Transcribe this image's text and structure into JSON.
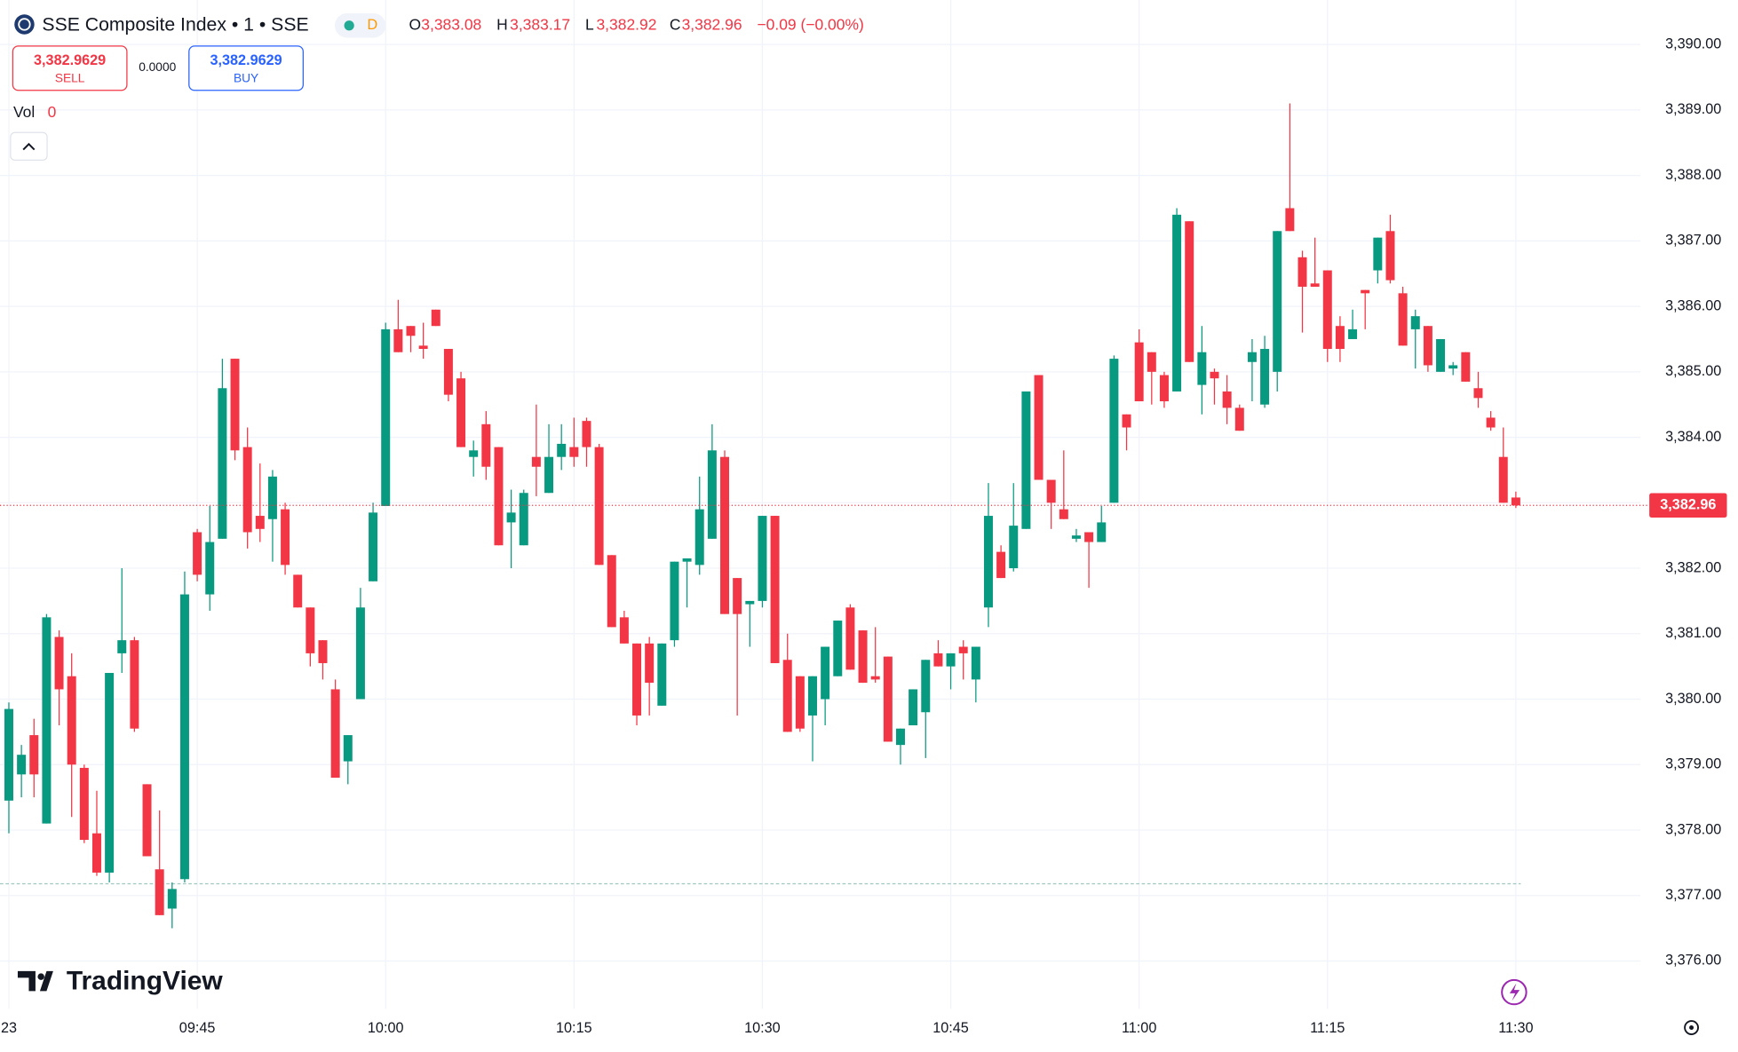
{
  "header": {
    "title": "SSE Composite Index • 1 • SSE",
    "interval_badge": "D",
    "ohlc": [
      {
        "label": "O",
        "value": "3,383.08"
      },
      {
        "label": "H",
        "value": "3,383.17"
      },
      {
        "label": "L",
        "value": "3,382.92"
      },
      {
        "label": "C",
        "value": "3,382.96"
      }
    ],
    "change": "−0.09 (−0.00%)"
  },
  "trade": {
    "sell_price": "3,382.9629",
    "sell": "SELL",
    "spread": "0.0000",
    "buy_price": "3,382.9629",
    "buy": "BUY"
  },
  "volume": {
    "label": "Vol",
    "value": "0"
  },
  "brand": "TradingView",
  "chart_data": {
    "type": "candlestick",
    "x": [
      "09:30",
      "09:31",
      "09:32",
      "09:33",
      "09:34",
      "09:35",
      "09:36",
      "09:37",
      "09:38",
      "09:39",
      "09:40",
      "09:41",
      "09:42",
      "09:43",
      "09:44",
      "09:45",
      "09:46",
      "09:47",
      "09:48",
      "09:49",
      "09:50",
      "09:51",
      "09:52",
      "09:53",
      "09:54",
      "09:55",
      "09:56",
      "09:57",
      "09:58",
      "09:59",
      "10:00",
      "10:01",
      "10:02",
      "10:03",
      "10:04",
      "10:05",
      "10:06",
      "10:07",
      "10:08",
      "10:09",
      "10:10",
      "10:11",
      "10:12",
      "10:13",
      "10:14",
      "10:15",
      "10:16",
      "10:17",
      "10:18",
      "10:19",
      "10:20",
      "10:21",
      "10:22",
      "10:23",
      "10:24",
      "10:25",
      "10:26",
      "10:27",
      "10:28",
      "10:29",
      "10:30",
      "10:31",
      "10:32",
      "10:33",
      "10:34",
      "10:35",
      "10:36",
      "10:37",
      "10:38",
      "10:39",
      "10:40",
      "10:41",
      "10:42",
      "10:43",
      "10:44",
      "10:45",
      "10:46",
      "10:47",
      "10:48",
      "10:49",
      "10:50",
      "10:51",
      "10:52",
      "10:53",
      "10:54",
      "10:55",
      "10:56",
      "10:57",
      "10:58",
      "10:59",
      "11:00",
      "11:01",
      "11:02",
      "11:03",
      "11:04",
      "11:05",
      "11:06",
      "11:07",
      "11:08",
      "11:09",
      "11:10",
      "11:11",
      "11:12",
      "11:13",
      "11:14",
      "11:15",
      "11:16",
      "11:17",
      "11:18",
      "11:19",
      "11:20",
      "11:21",
      "11:22",
      "11:23",
      "11:24",
      "11:25",
      "11:26",
      "11:27",
      "11:28",
      "11:29",
      "11:30"
    ],
    "open": [
      3378.45,
      3378.85,
      3379.45,
      3378.1,
      3380.95,
      3380.35,
      3378.95,
      3377.95,
      3377.35,
      3380.7,
      3380.9,
      3378.7,
      3377.4,
      3376.8,
      3377.25,
      3382.55,
      3381.6,
      3382.45,
      3385.2,
      3383.85,
      3382.8,
      3382.75,
      3382.9,
      3381.9,
      3381.4,
      3380.9,
      3380.15,
      3379.05,
      3380.0,
      3381.8,
      3382.95,
      3385.65,
      3385.7,
      3385.4,
      3385.95,
      3385.35,
      3384.9,
      3383.7,
      3384.2,
      3383.85,
      3382.7,
      3382.35,
      3383.7,
      3383.15,
      3383.7,
      3383.85,
      3384.25,
      3383.85,
      3382.2,
      3381.25,
      3380.85,
      3380.85,
      3379.9,
      3380.9,
      3382.1,
      3382.05,
      3382.45,
      3383.7,
      3381.85,
      3381.45,
      3381.5,
      3382.8,
      3380.6,
      3380.35,
      3379.75,
      3380.0,
      3380.35,
      3381.4,
      3381.05,
      3380.35,
      3380.65,
      3379.3,
      3379.6,
      3379.8,
      3380.7,
      3380.5,
      3380.8,
      3380.3,
      3381.4,
      3382.25,
      3382.0,
      3382.6,
      3384.95,
      3383.35,
      3382.9,
      3382.45,
      3382.55,
      3382.4,
      3383.0,
      3384.35,
      3385.45,
      3385.3,
      3384.95,
      3384.7,
      3387.3,
      3384.8,
      3385.0,
      3384.7,
      3384.45,
      3385.15,
      3384.5,
      3385.0,
      3387.5,
      3386.75,
      3386.35,
      3386.55,
      3385.7,
      3385.5,
      3386.25,
      3386.55,
      3387.15,
      3386.2,
      3385.65,
      3385.7,
      3385.0,
      3385.05,
      3385.3,
      3384.75,
      3384.3,
      3383.7,
      3383.08
    ],
    "high": [
      3379.95,
      3379.3,
      3379.7,
      3381.3,
      3381.05,
      3380.7,
      3379.0,
      3378.6,
      3380.4,
      3382.0,
      3380.95,
      3378.7,
      3378.3,
      3377.2,
      3381.95,
      3382.6,
      3382.95,
      3385.2,
      3385.2,
      3384.15,
      3383.6,
      3383.5,
      3383.0,
      3381.9,
      3381.4,
      3380.9,
      3380.3,
      3379.45,
      3381.7,
      3383.0,
      3385.75,
      3386.1,
      3385.7,
      3385.75,
      3385.95,
      3385.35,
      3385.0,
      3383.95,
      3384.4,
      3383.85,
      3383.2,
      3383.2,
      3384.5,
      3384.2,
      3384.2,
      3384.3,
      3384.3,
      3383.9,
      3382.2,
      3381.35,
      3380.85,
      3380.95,
      3380.85,
      3382.1,
      3382.15,
      3383.4,
      3384.2,
      3383.8,
      3381.85,
      3381.5,
      3382.8,
      3382.8,
      3381.0,
      3380.35,
      3380.35,
      3380.8,
      3381.2,
      3381.45,
      3381.05,
      3381.1,
      3380.65,
      3379.55,
      3380.15,
      3380.6,
      3380.9,
      3380.7,
      3380.9,
      3380.8,
      3383.3,
      3382.35,
      3383.3,
      3384.7,
      3384.95,
      3383.35,
      3383.8,
      3382.6,
      3382.55,
      3382.95,
      3385.25,
      3384.35,
      3385.65,
      3385.3,
      3385.0,
      3387.5,
      3387.3,
      3385.7,
      3385.05,
      3384.95,
      3384.5,
      3385.5,
      3385.55,
      3387.15,
      3389.1,
      3386.85,
      3387.05,
      3386.55,
      3385.85,
      3385.95,
      3386.25,
      3387.05,
      3387.4,
      3386.3,
      3385.95,
      3385.7,
      3385.5,
      3385.15,
      3385.3,
      3385.0,
      3384.4,
      3384.15,
      3383.17
    ],
    "low": [
      3377.95,
      3378.5,
      3378.5,
      3378.1,
      3379.6,
      3378.2,
      3377.8,
      3377.3,
      3377.2,
      3380.4,
      3379.5,
      3377.6,
      3376.7,
      3376.5,
      3377.2,
      3381.8,
      3381.35,
      3382.45,
      3383.65,
      3382.3,
      3382.4,
      3382.1,
      3381.9,
      3381.4,
      3380.5,
      3380.3,
      3378.8,
      3378.7,
      3380.0,
      3381.8,
      3382.95,
      3385.3,
      3385.3,
      3385.2,
      3385.7,
      3384.55,
      3383.85,
      3383.4,
      3383.35,
      3382.35,
      3382.0,
      3382.35,
      3383.1,
      3383.15,
      3383.5,
      3383.55,
      3383.55,
      3382.05,
      3381.1,
      3380.85,
      3379.6,
      3379.75,
      3379.9,
      3380.8,
      3381.4,
      3381.9,
      3382.45,
      3381.3,
      3379.75,
      3380.8,
      3381.4,
      3380.55,
      3379.5,
      3379.5,
      3379.05,
      3379.6,
      3380.35,
      3380.45,
      3380.25,
      3380.25,
      3379.35,
      3379.0,
      3379.6,
      3379.1,
      3380.5,
      3380.15,
      3380.3,
      3379.95,
      3381.1,
      3381.85,
      3381.95,
      3382.6,
      3383.35,
      3382.6,
      3382.75,
      3382.4,
      3381.7,
      3382.4,
      3383.0,
      3383.8,
      3384.55,
      3384.5,
      3384.45,
      3384.7,
      3385.15,
      3384.35,
      3384.5,
      3384.2,
      3384.1,
      3384.55,
      3384.45,
      3384.7,
      3387.15,
      3385.6,
      3386.3,
      3385.15,
      3385.15,
      3385.5,
      3385.65,
      3386.35,
      3386.35,
      3385.4,
      3385.05,
      3385.0,
      3385.0,
      3384.95,
      3384.85,
      3384.45,
      3384.1,
      3383.0,
      3382.92
    ],
    "close": [
      3379.85,
      3379.15,
      3378.85,
      3381.25,
      3380.15,
      3379.0,
      3377.85,
      3377.35,
      3380.4,
      3380.9,
      3379.55,
      3377.6,
      3376.7,
      3377.1,
      3381.6,
      3381.9,
      3382.4,
      3384.75,
      3383.8,
      3382.55,
      3382.6,
      3383.4,
      3382.05,
      3381.4,
      3380.7,
      3380.55,
      3378.8,
      3379.45,
      3381.4,
      3382.85,
      3385.65,
      3385.3,
      3385.55,
      3385.35,
      3385.7,
      3384.65,
      3383.85,
      3383.8,
      3383.55,
      3382.35,
      3382.85,
      3383.15,
      3383.55,
      3383.7,
      3383.9,
      3383.7,
      3383.85,
      3382.05,
      3381.1,
      3380.85,
      3379.75,
      3380.25,
      3380.85,
      3382.1,
      3382.15,
      3382.9,
      3383.8,
      3381.3,
      3381.3,
      3381.5,
      3382.8,
      3380.55,
      3379.5,
      3379.55,
      3380.35,
      3380.8,
      3381.2,
      3380.45,
      3380.25,
      3380.3,
      3379.35,
      3379.55,
      3380.15,
      3380.6,
      3380.5,
      3380.7,
      3380.7,
      3380.8,
      3382.8,
      3381.85,
      3382.65,
      3384.7,
      3383.35,
      3383.0,
      3382.75,
      3382.5,
      3382.4,
      3382.7,
      3385.2,
      3384.15,
      3384.55,
      3385.0,
      3384.55,
      3387.4,
      3385.15,
      3385.3,
      3384.9,
      3384.45,
      3384.1,
      3385.3,
      3385.35,
      3387.15,
      3387.15,
      3386.3,
      3386.3,
      3385.35,
      3385.35,
      3385.65,
      3386.2,
      3387.05,
      3386.4,
      3385.4,
      3385.85,
      3385.1,
      3385.5,
      3385.1,
      3384.85,
      3384.6,
      3384.15,
      3383.0,
      3382.96
    ],
    "up_color": "#089981",
    "down_color": "#f23645",
    "ylim": [
      3375.27,
      3390.68
    ],
    "yticks": [
      {
        "value": 3376,
        "label": "3,376.00"
      },
      {
        "value": 3377,
        "label": "3,377.00"
      },
      {
        "value": 3378,
        "label": "3,378.00"
      },
      {
        "value": 3379,
        "label": "3,379.00"
      },
      {
        "value": 3380,
        "label": "3,380.00"
      },
      {
        "value": 3381,
        "label": "3,381.00"
      },
      {
        "value": 3382,
        "label": "3,382.00"
      },
      {
        "value": 3383,
        "label": "3,383.00"
      },
      {
        "value": 3384,
        "label": "3,384.00"
      },
      {
        "value": 3385,
        "label": "3,385.00"
      },
      {
        "value": 3386,
        "label": "3,386.00"
      },
      {
        "value": 3387,
        "label": "3,387.00"
      },
      {
        "value": 3388,
        "label": "3,388.00"
      },
      {
        "value": 3389,
        "label": "3,389.00"
      },
      {
        "value": 3390,
        "label": "3,390.00"
      }
    ],
    "xticks": [
      {
        "value": "09:30",
        "label": "23"
      },
      "09:45",
      "10:00",
      "10:15",
      "10:30",
      "10:45",
      "11:00",
      "11:15",
      "11:30"
    ],
    "last_price": {
      "value": 3382.96,
      "label": "3,382.96"
    },
    "reference_line": 3377.18,
    "grid": true
  }
}
